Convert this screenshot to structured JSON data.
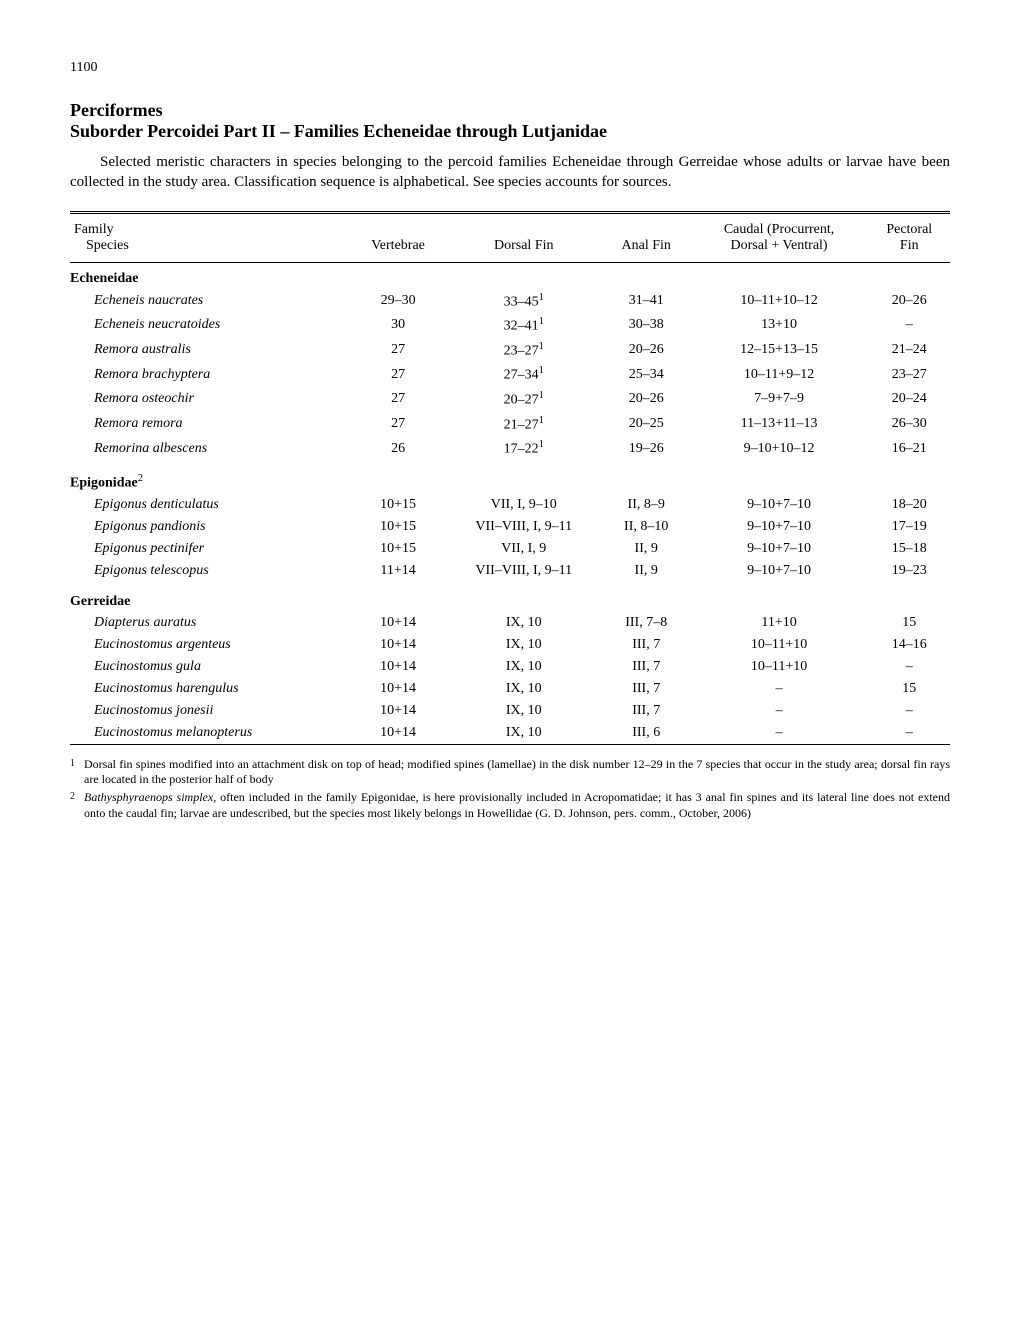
{
  "page_number": "1100",
  "order_title": "Perciformes",
  "suborder_title": "Suborder Percoidei Part II – Families Echeneidae through Lutjanidae",
  "intro": "Selected meristic characters in species belonging to the percoid families Echeneidae through Gerreidae whose adults or larvae have been collected in the study area. Classification sequence is alphabetical. See species accounts for sources.",
  "headers": {
    "family_species_line1": "Family",
    "family_species_line2": "Species",
    "vertebrae": "Vertebrae",
    "dorsal_fin": "Dorsal Fin",
    "anal_fin": "Anal Fin",
    "caudal_line1": "Caudal (Procurrent,",
    "caudal_line2": "Dorsal + Ventral)",
    "pectoral_line1": "Pectoral",
    "pectoral_line2": "Fin"
  },
  "families": [
    {
      "name": "Echeneidae",
      "sup": "",
      "species": [
        {
          "name": "Echeneis naucrates",
          "vertebrae": "29–30",
          "dorsal": "33–45",
          "dorsal_sup": "1",
          "anal": "31–41",
          "caudal": "10–11+10–12",
          "pectoral": "20–26"
        },
        {
          "name": "Echeneis neucratoides",
          "vertebrae": "30",
          "dorsal": "32–41",
          "dorsal_sup": "1",
          "anal": "30–38",
          "caudal": "13+10",
          "pectoral": "–"
        },
        {
          "name": "Remora australis",
          "vertebrae": "27",
          "dorsal": "23–27",
          "dorsal_sup": "1",
          "anal": "20–26",
          "caudal": "12–15+13–15",
          "pectoral": "21–24"
        },
        {
          "name": "Remora brachyptera",
          "vertebrae": "27",
          "dorsal": "27–34",
          "dorsal_sup": "1",
          "anal": "25–34",
          "caudal": "10–11+9–12",
          "pectoral": "23–27"
        },
        {
          "name": "Remora osteochir",
          "vertebrae": "27",
          "dorsal": "20–27",
          "dorsal_sup": "1",
          "anal": "20–26",
          "caudal": "7–9+7–9",
          "pectoral": "20–24"
        },
        {
          "name": "Remora remora",
          "vertebrae": "27",
          "dorsal": "21–27",
          "dorsal_sup": "1",
          "anal": "20–25",
          "caudal": "11–13+11–13",
          "pectoral": "26–30"
        },
        {
          "name": "Remorina albescens",
          "vertebrae": "26",
          "dorsal": "17–22",
          "dorsal_sup": "1",
          "anal": "19–26",
          "caudal": "9–10+10–12",
          "pectoral": "16–21"
        }
      ]
    },
    {
      "name": "Epigonidae",
      "sup": "2",
      "species": [
        {
          "name": "Epigonus denticulatus",
          "vertebrae": "10+15",
          "dorsal": "VII, I, 9–10",
          "dorsal_sup": "",
          "anal": "II, 8–9",
          "caudal": "9–10+7–10",
          "pectoral": "18–20"
        },
        {
          "name": "Epigonus pandionis",
          "vertebrae": "10+15",
          "dorsal": "VII–VIII, I, 9–11",
          "dorsal_sup": "",
          "anal": "II, 8–10",
          "caudal": "9–10+7–10",
          "pectoral": "17–19"
        },
        {
          "name": "Epigonus pectinifer",
          "vertebrae": "10+15",
          "dorsal": "VII, I, 9",
          "dorsal_sup": "",
          "anal": "II, 9",
          "caudal": "9–10+7–10",
          "pectoral": "15–18"
        },
        {
          "name": "Epigonus telescopus",
          "vertebrae": "11+14",
          "dorsal": "VII–VIII, I, 9–11",
          "dorsal_sup": "",
          "anal": "II, 9",
          "caudal": "9–10+7–10",
          "pectoral": "19–23"
        }
      ]
    },
    {
      "name": "Gerreidae",
      "sup": "",
      "species": [
        {
          "name": "Diapterus auratus",
          "vertebrae": "10+14",
          "dorsal": "IX, 10",
          "dorsal_sup": "",
          "anal": "III, 7–8",
          "caudal": "11+10",
          "pectoral": "15"
        },
        {
          "name": "Eucinostomus argenteus",
          "vertebrae": "10+14",
          "dorsal": "IX, 10",
          "dorsal_sup": "",
          "anal": "III, 7",
          "caudal": "10–11+10",
          "pectoral": "14–16"
        },
        {
          "name": "Eucinostomus gula",
          "vertebrae": "10+14",
          "dorsal": "IX, 10",
          "dorsal_sup": "",
          "anal": "III, 7",
          "caudal": "10–11+10",
          "pectoral": "–"
        },
        {
          "name": "Eucinostomus harengulus",
          "vertebrae": "10+14",
          "dorsal": "IX, 10",
          "dorsal_sup": "",
          "anal": "III, 7",
          "caudal": "–",
          "pectoral": "15"
        },
        {
          "name": "Eucinostomus jonesii",
          "vertebrae": "10+14",
          "dorsal": "IX, 10",
          "dorsal_sup": "",
          "anal": "III, 7",
          "caudal": "–",
          "pectoral": "–"
        },
        {
          "name": "Eucinostomus melanopterus",
          "vertebrae": "10+14",
          "dorsal": "IX, 10",
          "dorsal_sup": "",
          "anal": "III, 6",
          "caudal": "–",
          "pectoral": "–"
        }
      ]
    }
  ],
  "footnotes": [
    {
      "marker": "1",
      "text": "Dorsal fin spines modified into an attachment disk on top of head; modified spines (lamellae) in the disk number 12–29 in the 7 species that occur in the study area; dorsal fin rays are located in the posterior half of body"
    },
    {
      "marker": "2",
      "text_prefix": "",
      "text_italic": "Bathysphyraenops simplex",
      "text_suffix": ", often included in the family Epigonidae, is here provisionally included in Acropomatidae; it has 3 anal fin spines and its lateral line does not extend onto the caudal fin; larvae are undescribed, but the species most likely belongs in Howellidae (G. D. Johnson, pers. comm., October, 2006)"
    }
  ]
}
